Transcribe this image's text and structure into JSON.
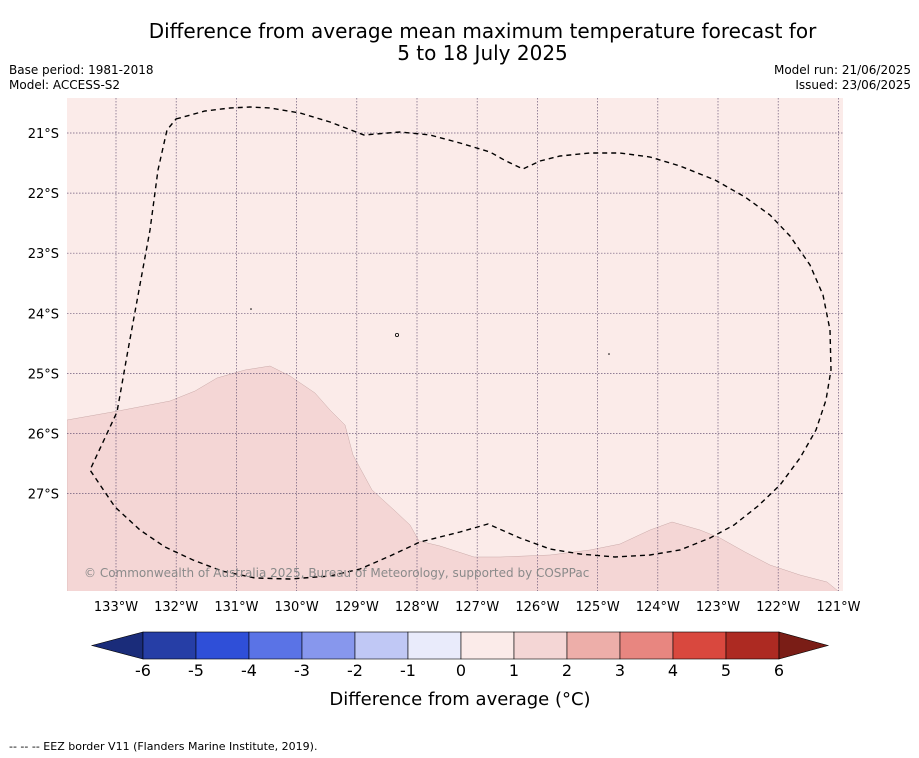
{
  "header": {
    "title_line1": "Difference from average mean maximum temperature forecast for",
    "title_line2": "5 to 18 July 2025",
    "base_period": "Base period: 1981-2018",
    "model": "Model: ACCESS-S2",
    "model_run": "Model run: 21/06/2025",
    "issued": "Issued: 23/06/2025"
  },
  "map": {
    "lon_labels": [
      "133°W",
      "132°W",
      "131°W",
      "130°W",
      "129°W",
      "128°W",
      "127°W",
      "126°W",
      "125°W",
      "124°W",
      "123°W",
      "122°W",
      "121°W"
    ],
    "lat_labels": [
      "21°S",
      "22°S",
      "23°S",
      "24°S",
      "25°S",
      "26°S",
      "27°S"
    ],
    "background_color": "#fbebe9",
    "warmer_region_color": "#f4d6d5",
    "eez_line_color": "#000000",
    "copyright": "© Commonwealth of Australia 2025, Bureau of Meteorology, supported by COSPPac"
  },
  "colorbar": {
    "ticks": [
      "-6",
      "-5",
      "-4",
      "-3",
      "-2",
      "-1",
      "0",
      "1",
      "2",
      "3",
      "4",
      "5",
      "6"
    ],
    "colors": [
      "#263ea6",
      "#2f4fd8",
      "#5a73e6",
      "#8797ed",
      "#c0c8f5",
      "#e9ebfb",
      "#fbebe9",
      "#f4d6d5",
      "#edaea9",
      "#e88680",
      "#d9483e",
      "#ad2a22"
    ],
    "under_color": "#1a2c7a",
    "over_color": "#7a1d16",
    "title": "Difference from average (°C)"
  },
  "footnote": "-- -- -- EEZ border V11 (Flanders Marine Institute, 2019)."
}
